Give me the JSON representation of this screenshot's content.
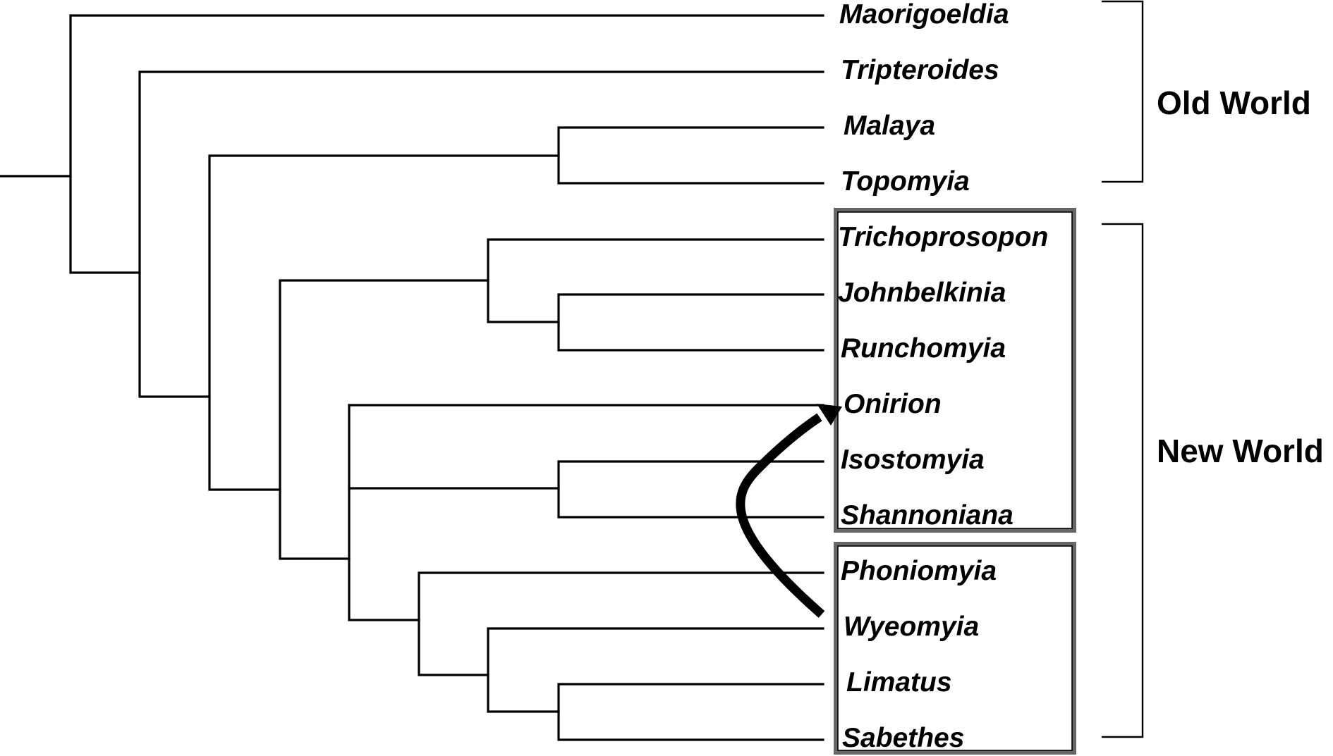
{
  "taxa": [
    "Maorigoeldia",
    "Tripteroides",
    "Malaya",
    "Topomyia",
    "Trichoprosopon",
    "Johnbelkinia",
    "Runchomyia",
    "Onirion",
    "Isostomyia",
    "Shannoniana",
    "Phoniomyia",
    "Wyeomyia",
    "Limatus",
    "Sabethes"
  ],
  "regions": {
    "old_world": "Old World",
    "new_world": "New World"
  },
  "arrow": {
    "from": "Wyeomyia",
    "to": "Onirion"
  }
}
